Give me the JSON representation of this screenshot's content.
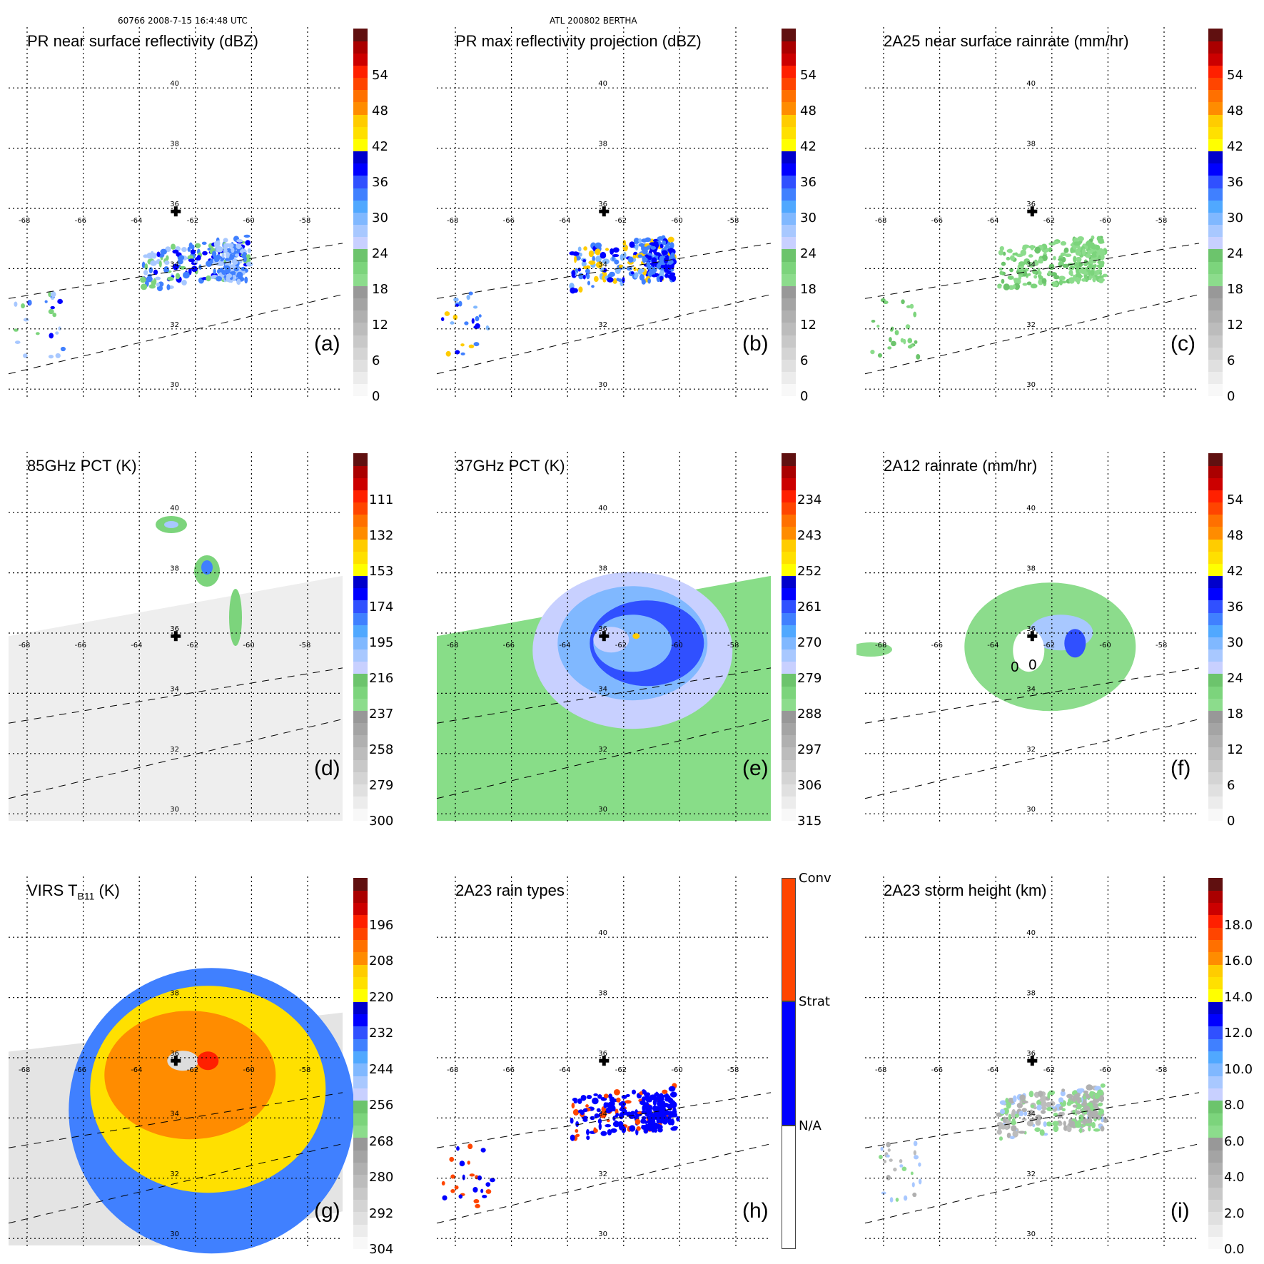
{
  "header": {
    "left": "60766 2008-7-15 16:4:48 UTC",
    "center": "ATL 200802 BERTHA"
  },
  "chart_data": [
    {
      "type": "heatmap",
      "panel": "(a)",
      "title": "PR near surface reflectivity (dBZ)",
      "colorbar": {
        "ticks": [
          "0",
          "6",
          "12",
          "18",
          "24",
          "30",
          "36",
          "42",
          "48",
          "54"
        ],
        "range": [
          0,
          60
        ],
        "unit": "dBZ"
      },
      "lon_ticks": [
        -68,
        -66,
        -64,
        -62,
        -60,
        -58
      ],
      "lat_ticks": [
        30,
        32,
        34,
        36,
        38,
        40
      ],
      "storm_center": {
        "lon": -62.7,
        "lat": 35.9
      },
      "swath": "PR narrow swath",
      "features": "weak echoes 18-33 dBZ north of 33N between -64 and -60 lon; scattered cells near -68 lon"
    },
    {
      "type": "heatmap",
      "panel": "(b)",
      "title": "PR max reflectivity projection (dBZ)",
      "colorbar": {
        "ticks": [
          "0",
          "6",
          "12",
          "18",
          "24",
          "30",
          "36",
          "42",
          "48",
          "54"
        ],
        "range": [
          0,
          60
        ],
        "unit": "dBZ"
      },
      "lon_ticks": [
        -68,
        -66,
        -64,
        -62,
        -60,
        -58
      ],
      "lat_ticks": [
        30,
        32,
        34,
        36,
        38,
        40
      ],
      "storm_center": {
        "lon": -62.7,
        "lat": 35.9
      },
      "features": "max reflectivity up to ~40 dBZ near -61 lon, 34.5N"
    },
    {
      "type": "heatmap",
      "panel": "(c)",
      "title": "2A25 near surface rainrate (mm/hr)",
      "colorbar": {
        "ticks": [
          "0",
          "6",
          "12",
          "18",
          "24",
          "30",
          "36",
          "42",
          "48",
          "54"
        ],
        "range": [
          0,
          60
        ],
        "unit": "mm/hr"
      },
      "lon_ticks": [
        -68,
        -66,
        -64,
        -62,
        -60,
        -58
      ],
      "lat_ticks": [
        30,
        32,
        34,
        36,
        38,
        40
      ],
      "storm_center": {
        "lon": -62.7,
        "lat": 35.9
      },
      "features": "light rain 0-6 mm/hr"
    },
    {
      "type": "heatmap",
      "panel": "(d)",
      "title": "85GHz PCT (K)",
      "colorbar": {
        "ticks": [
          "300",
          "279",
          "258",
          "237",
          "216",
          "195",
          "174",
          "153",
          "132",
          "111"
        ],
        "range": [
          300,
          90
        ],
        "unit": "K"
      },
      "lon_ticks": [
        -68,
        -66,
        -64,
        -62,
        -60,
        -58
      ],
      "lat_ticks": [
        30,
        32,
        34,
        36,
        38,
        40
      ],
      "storm_center": {
        "lon": -62.7,
        "lat": 35.9
      },
      "features": "eyewall bands 216-245 K north and east of center"
    },
    {
      "type": "heatmap",
      "panel": "(e)",
      "title": "37GHz PCT (K)",
      "colorbar": {
        "ticks": [
          "315",
          "306",
          "297",
          "288",
          "279",
          "270",
          "261",
          "252",
          "243",
          "234"
        ],
        "range": [
          315,
          225
        ],
        "unit": "K"
      },
      "lon_ticks": [
        -68,
        -66,
        -64,
        -62,
        -60,
        -58
      ],
      "lat_ticks": [
        30,
        32,
        34,
        36,
        38,
        40
      ],
      "storm_center": {
        "lon": -62.7,
        "lat": 35.9
      },
      "features": "spiral band 262-275 K wrapping around center; background 285-295 K"
    },
    {
      "type": "heatmap",
      "panel": "(f)",
      "title": "2A12 rainrate (mm/hr)",
      "colorbar": {
        "ticks": [
          "0",
          "6",
          "12",
          "18",
          "24",
          "30",
          "36",
          "42",
          "48",
          "54"
        ],
        "range": [
          0,
          60
        ],
        "unit": "mm/hr"
      },
      "lon_ticks": [
        -68,
        -66,
        -64,
        -62,
        -60,
        -58
      ],
      "lat_ticks": [
        30,
        32,
        34,
        36,
        38,
        40
      ],
      "storm_center": {
        "lon": -62.7,
        "lat": 35.9
      },
      "contour_labels": [
        "0",
        "0"
      ],
      "features": "rain shield 0-6 mm/hr with peaks 12-24 mm/hr NE of center"
    },
    {
      "type": "heatmap",
      "panel": "(g)",
      "title": "VIRS T",
      "title_sub": "B11",
      "title_suffix": " (K)",
      "colorbar": {
        "ticks": [
          "304",
          "292",
          "280",
          "268",
          "256",
          "244",
          "232",
          "220",
          "208",
          "196"
        ],
        "range": [
          304,
          184
        ],
        "unit": "K"
      },
      "lon_ticks": [
        -68,
        -66,
        -64,
        -62,
        -60,
        -58
      ],
      "lat_ticks": [
        30,
        32,
        34,
        36,
        38
      ],
      "storm_center": {
        "lon": -62.7,
        "lat": 35.9
      },
      "features": "cold cloud tops 200-235 K in spiral bands"
    },
    {
      "type": "heatmap",
      "panel": "(h)",
      "title": "2A23 rain types",
      "colorbar": {
        "categories": [
          "N/A",
          "Strat",
          "Conv"
        ],
        "colors": [
          "#ffffff",
          "#0000ff",
          "#ff4500"
        ]
      },
      "lon_ticks": [
        -68,
        -66,
        -64,
        -62,
        -60,
        -58
      ],
      "lat_ticks": [
        30,
        32,
        34,
        36,
        38,
        40
      ],
      "storm_center": {
        "lon": -62.7,
        "lat": 35.9
      },
      "features": "mostly stratiform with scattered convective pixels"
    },
    {
      "type": "heatmap",
      "panel": "(i)",
      "title": "2A23 storm height (km)",
      "colorbar": {
        "ticks": [
          "0.0",
          "2.0",
          "4.0",
          "6.0",
          "8.0",
          "10.0",
          "12.0",
          "14.0",
          "16.0",
          "18.0"
        ],
        "range": [
          0,
          20
        ],
        "unit": "km"
      },
      "lon_ticks": [
        -68,
        -66,
        -64,
        -62,
        -60,
        -58
      ],
      "lat_ticks": [
        30,
        32,
        34,
        36,
        38,
        40
      ],
      "storm_center": {
        "lon": -62.7,
        "lat": 35.9
      },
      "features": "storm heights mostly 3-7 km"
    }
  ],
  "colors": {
    "scale": [
      "#f8f8f8",
      "#ececec",
      "#e0e0e0",
      "#d4d4d4",
      "#c8c8c8",
      "#bcbcbc",
      "#b0b0b0",
      "#a4a4a4",
      "#989898",
      "#8cdc8c",
      "#7cd47c",
      "#6cc46c",
      "#c8d0ff",
      "#a8c8ff",
      "#80b8ff",
      "#50a8ff",
      "#4080ff",
      "#3050ff",
      "#0000ff",
      "#0000cc",
      "#ffff00",
      "#ffe000",
      "#ffcc00",
      "#ff8c00",
      "#ff7000",
      "#ff4500",
      "#ff2000",
      "#cc0000",
      "#aa0000",
      "#601010"
    ]
  }
}
